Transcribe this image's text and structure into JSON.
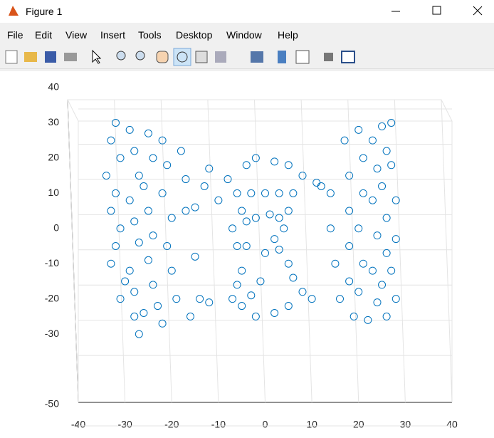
{
  "window": {
    "title": "Figure 1"
  },
  "menu": [
    "File",
    "Edit",
    "View",
    "Insert",
    "Tools",
    "Desktop",
    "Window",
    "Help"
  ],
  "chart_data": {
    "type": "scatter",
    "color": "#0072bd",
    "x": [
      -32,
      -33,
      -31,
      -34,
      -32,
      -33,
      -31,
      -32,
      -33,
      -30,
      -31,
      -28,
      -27,
      -29,
      -28,
      -27,
      -29,
      -28,
      -27,
      -29,
      -28,
      -26,
      -25,
      -24,
      -26,
      -25,
      -24,
      -25,
      -24,
      -23,
      -22,
      -22,
      -21,
      -22,
      -20,
      -21,
      -20,
      -19,
      -18,
      -17,
      -16,
      -14,
      -12,
      -17,
      -15,
      -12,
      -8,
      -4,
      -2,
      2,
      5,
      8,
      11,
      14,
      -13,
      -10,
      -15,
      -6,
      -3,
      0,
      3,
      6,
      -5,
      5,
      -7,
      -4,
      -2,
      1,
      3,
      4,
      2,
      -6,
      -4,
      0,
      3,
      5,
      6,
      -5,
      -6,
      -3,
      -5,
      -2,
      2,
      5,
      -7,
      8,
      10,
      -1,
      12,
      14,
      15,
      16,
      17,
      18,
      18,
      18,
      18,
      19,
      20,
      21,
      21,
      20,
      21,
      20,
      22,
      23,
      24,
      23,
      24,
      23,
      24,
      25,
      26,
      25,
      26,
      26,
      25,
      26,
      27,
      27,
      28,
      28,
      27,
      28
    ],
    "y": [
      30,
      25,
      20,
      15,
      10,
      5,
      0,
      -5,
      -10,
      -15,
      -20,
      -25,
      -30,
      28,
      22,
      15,
      8,
      2,
      -4,
      -12,
      -18,
      -24,
      27,
      20,
      12,
      5,
      -2,
      -9,
      -16,
      -22,
      -27,
      25,
      18,
      10,
      3,
      -5,
      -12,
      -20,
      22,
      14,
      -25,
      -20,
      -21,
      5,
      -8,
      17,
      14,
      18,
      20,
      19,
      18,
      15,
      13,
      10,
      12,
      8,
      6,
      10,
      10,
      10,
      10,
      10,
      5,
      5,
      0,
      2,
      3,
      4,
      3,
      0,
      -3,
      -5,
      -5,
      -7,
      -6,
      -10,
      -14,
      -12,
      -16,
      -19,
      -22,
      -25,
      -24,
      -22,
      -20,
      -18,
      -20,
      -15,
      12,
      0,
      -10,
      -20,
      25,
      15,
      5,
      -5,
      -15,
      -25,
      28,
      20,
      10,
      0,
      -10,
      -18,
      -26,
      25,
      17,
      8,
      -2,
      -12,
      -21,
      29,
      22,
      12,
      3,
      -7,
      -16,
      -25,
      30,
      18,
      8,
      -3,
      -12,
      -20
    ],
    "xlim": [
      -40,
      40
    ],
    "xticks": [
      -40,
      -30,
      -20,
      -10,
      0,
      10,
      20,
      30,
      40
    ],
    "ylim": [
      -50,
      40
    ],
    "yticks": [
      -50,
      -30,
      -20,
      -10,
      0,
      10,
      20,
      30,
      40
    ],
    "grid": true
  }
}
